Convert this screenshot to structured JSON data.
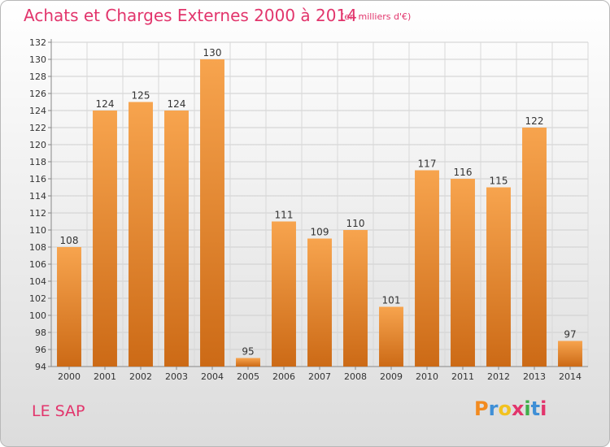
{
  "title": "Achats et Charges Externes 2000 à 2014",
  "subtitle": "(en milliers d'€)",
  "place_label": "LE SAP",
  "logo": {
    "text": "Proxiti",
    "letters": [
      "P",
      "r",
      "o",
      "x",
      "i",
      "t",
      "i"
    ],
    "letter_colors": [
      "#f28a1f",
      "#3f8fd6",
      "#f2c21f",
      "#e2356c",
      "#3fae49",
      "#3f8fd6",
      "#e2356c"
    ]
  },
  "colors": {
    "title": "#e2356c",
    "bar_top": "#f7a44e",
    "bar_bottom": "#cc6a16"
  },
  "chart_data": {
    "type": "bar",
    "title": "Achats et Charges Externes 2000 à 2014",
    "subtitle": "(en milliers d'€)",
    "categories": [
      "2000",
      "2001",
      "2002",
      "2003",
      "2004",
      "2005",
      "2006",
      "2007",
      "2008",
      "2009",
      "2010",
      "2011",
      "2012",
      "2013",
      "2014"
    ],
    "values": [
      108,
      124,
      125,
      124,
      130,
      95,
      111,
      109,
      110,
      101,
      117,
      116,
      115,
      122,
      97
    ],
    "ylim": [
      94,
      132
    ],
    "yticks": [
      94,
      96,
      98,
      100,
      102,
      104,
      106,
      108,
      110,
      112,
      114,
      116,
      118,
      120,
      122,
      124,
      126,
      128,
      130,
      132
    ],
    "grid": true,
    "legend": "none"
  }
}
